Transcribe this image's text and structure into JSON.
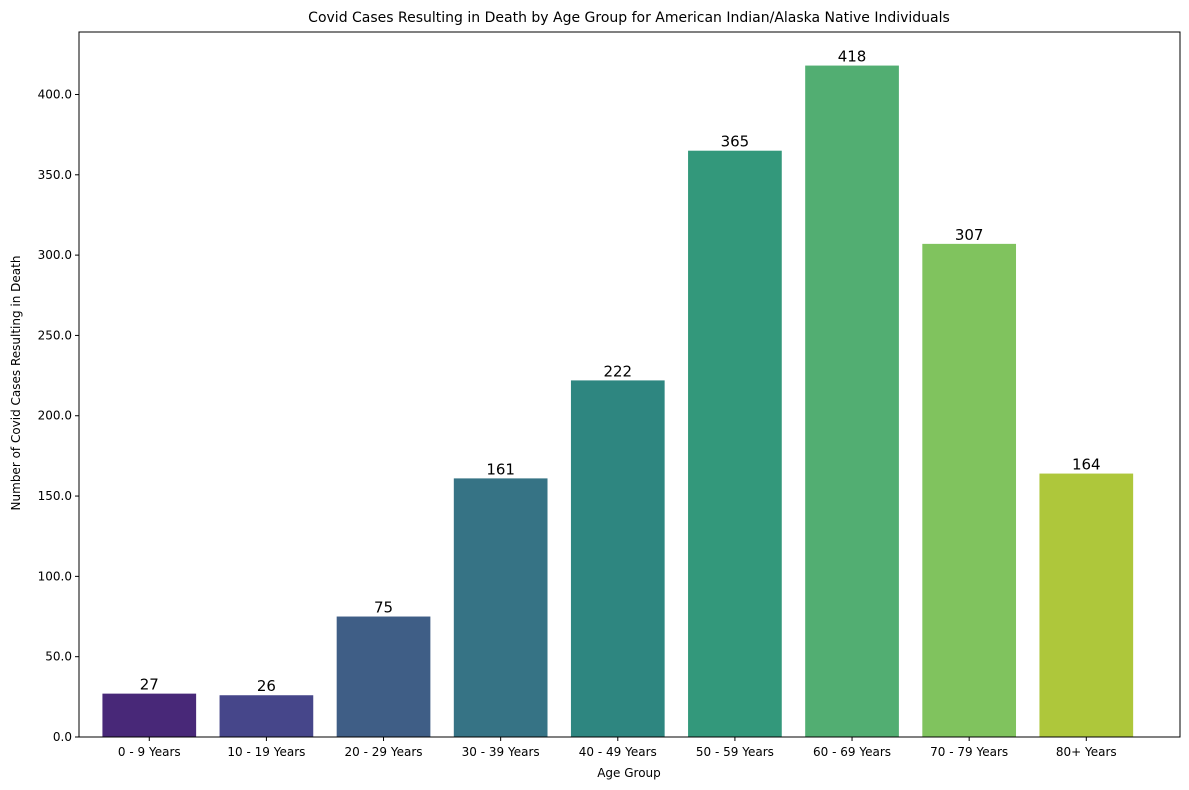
{
  "chart_data": {
    "type": "bar",
    "title": "Covid Cases Resulting in Death by Age Group for American Indian/Alaska Native Individuals",
    "xlabel": "Age Group",
    "ylabel": "Number of Covid Cases Resulting in Death",
    "categories": [
      "0 - 9 Years",
      "10 - 19 Years",
      "20 - 29 Years",
      "30 - 39 Years",
      "40 - 49 Years",
      "50 - 59 Years",
      "60 - 69 Years",
      "70 - 79 Years",
      "80+ Years"
    ],
    "values": [
      27,
      26,
      75,
      161,
      222,
      365,
      418,
      307,
      164
    ],
    "data_labels": [
      "27",
      "26",
      "75",
      "161",
      "222",
      "365",
      "418",
      "307",
      "164"
    ],
    "ylim": [
      0,
      438.9
    ],
    "yticks": [
      0,
      50,
      100,
      150,
      200,
      250,
      300,
      350,
      400
    ],
    "ytick_labels": [
      "0.0",
      "50.0",
      "100.0",
      "150.0",
      "200.0",
      "250.0",
      "300.0",
      "350.0",
      "400.0"
    ],
    "colors": [
      "#482878",
      "#46468a",
      "#3f5e86",
      "#367385",
      "#2e8680",
      "#33987b",
      "#52ae72",
      "#80c35e",
      "#aec73b"
    ],
    "grid": false,
    "legend": "none"
  }
}
